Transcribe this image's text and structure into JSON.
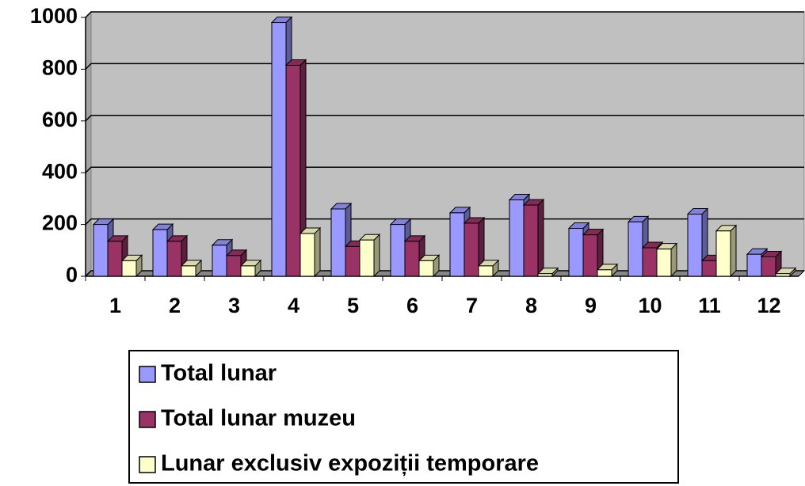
{
  "chart_data": {
    "type": "bar3d",
    "categories": [
      "1",
      "2",
      "3",
      "4",
      "5",
      "6",
      "7",
      "8",
      "9",
      "10",
      "11",
      "12"
    ],
    "series": [
      {
        "name": "Total lunar",
        "color": "#9999ff",
        "values": [
          200,
          180,
          120,
          980,
          260,
          200,
          245,
          295,
          185,
          210,
          240,
          85
        ]
      },
      {
        "name": "Total lunar muzeu",
        "color": "#993366",
        "values": [
          135,
          135,
          80,
          815,
          115,
          135,
          205,
          275,
          160,
          110,
          60,
          75
        ]
      },
      {
        "name": "Lunar exclusiv expoziții temporare",
        "color": "#ffffcc",
        "values": [
          60,
          40,
          40,
          165,
          140,
          60,
          40,
          10,
          25,
          105,
          175,
          10
        ]
      }
    ],
    "ylim": [
      0,
      1000
    ],
    "yticks": [
      0,
      200,
      400,
      600,
      800,
      1000
    ],
    "grid": true,
    "wall_color": "#c0c0c0"
  }
}
